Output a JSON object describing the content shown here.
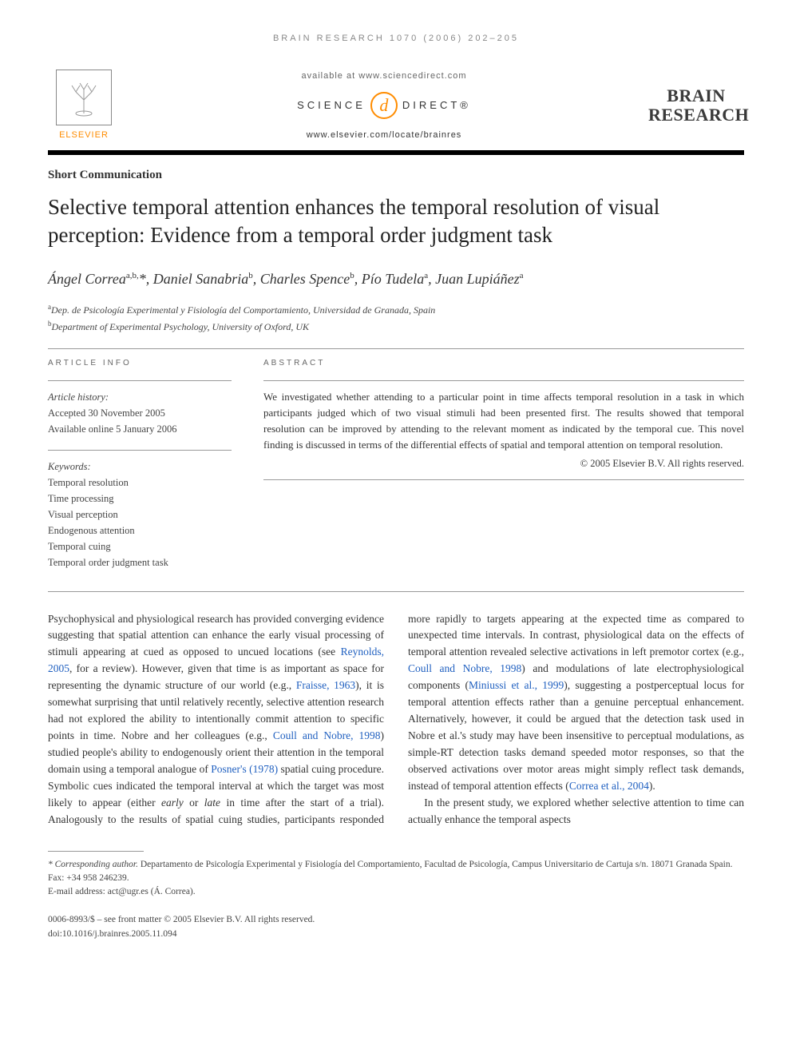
{
  "running_head": "BRAIN RESEARCH 1070 (2006) 202–205",
  "banner": {
    "publisher": "ELSEVIER",
    "available_text": "available at www.sciencedirect.com",
    "sd_left": "SCIENCE",
    "sd_right": "DIRECT®",
    "locate_url": "www.elsevier.com/locate/brainres",
    "journal_line1": "BRAIN",
    "journal_line2": "RESEARCH"
  },
  "article_type": "Short Communication",
  "title": "Selective temporal attention enhances the temporal resolution of visual perception: Evidence from a temporal order judgment task",
  "authors_html": "Ángel Correa<sup>a,b,</sup>*, Daniel Sanabria<sup>b</sup>, Charles Spence<sup>b</sup>, Pío Tudela<sup>a</sup>, Juan Lupiáñez<sup>a</sup>",
  "affiliations": [
    {
      "sup": "a",
      "text": "Dep. de Psicología Experimental y Fisiología del Comportamiento, Universidad de Granada, Spain"
    },
    {
      "sup": "b",
      "text": "Department of Experimental Psychology, University of Oxford, UK"
    }
  ],
  "info": {
    "head": "ARTICLE INFO",
    "history_label": "Article history:",
    "accepted": "Accepted 30 November 2005",
    "online": "Available online 5 January 2006",
    "keywords_label": "Keywords:",
    "keywords": [
      "Temporal resolution",
      "Time processing",
      "Visual perception",
      "Endogenous attention",
      "Temporal cuing",
      "Temporal order judgment task"
    ]
  },
  "abstract": {
    "head": "ABSTRACT",
    "text": "We investigated whether attending to a particular point in time affects temporal resolution in a task in which participants judged which of two visual stimuli had been presented first. The results showed that temporal resolution can be improved by attending to the relevant moment as indicated by the temporal cue. This novel finding is discussed in terms of the differential effects of spatial and temporal attention on temporal resolution.",
    "copyright": "© 2005 Elsevier B.V. All rights reserved."
  },
  "body": {
    "p1_a": "Psychophysical and physiological research has provided converging evidence suggesting that spatial attention can enhance the early visual processing of stimuli appearing at cued as opposed to uncued locations (see ",
    "p1_ref1": "Reynolds, 2005",
    "p1_b": ", for a review). However, given that time is as important as space for representing the dynamic structure of our world (e.g., ",
    "p1_ref2": "Fraisse, 1963",
    "p1_c": "), it is somewhat surprising that until relatively recently, selective attention research had not explored the ability to intentionally commit attention to specific points in time. Nobre and her colleagues (e.g., ",
    "p1_ref3": "Coull and Nobre, 1998",
    "p1_d": ") studied people's ability to endogenously orient their attention in the temporal domain using a temporal analogue of ",
    "p1_ref4": "Posner's (1978)",
    "p1_e": " spatial cuing procedure. Symbolic cues indicated the temporal interval at which the target was most likely to appear (either ",
    "p1_em1": "early",
    "p1_f": " or ",
    "p1_em2": "late",
    "p1_g": " in time after the start of a trial). Analogously to the results of spatial cuing studies, participants responded more rapidly to targets appearing at the expected time as compared to unexpected time intervals. In contrast, physiological data on the effects of temporal attention revealed selective activations in left premotor cortex (e.g., ",
    "p1_ref5": "Coull and Nobre, 1998",
    "p1_h": ") and modulations of late electrophysiological components (",
    "p1_ref6": "Miniussi et al., 1999",
    "p1_i": "), suggesting a postperceptual locus for temporal attention effects rather than a genuine perceptual enhancement. Alternatively, however, it could be argued that the detection task used in Nobre et al.'s study may have been insensitive to perceptual modulations, as simple-RT detection tasks demand speeded motor responses, so that the observed activations over motor areas might simply reflect task demands, instead of temporal attention effects (",
    "p1_ref7": "Correa et al., 2004",
    "p1_j": ").",
    "p2": "In the present study, we explored whether selective attention to time can actually enhance the temporal aspects"
  },
  "footnote": {
    "corr_label": "* Corresponding author.",
    "corr_text": " Departamento de Psicología Experimental y Fisiología del Comportamiento, Facultad de Psicología, Campus Universitario de Cartuja s/n. 18071 Granada Spain. Fax: +34 958 246239.",
    "email_label": "E-mail address:",
    "email": " act@ugr.es (Á. Correa)."
  },
  "footer": {
    "line1": "0006-8993/$ – see front matter © 2005 Elsevier B.V. All rights reserved.",
    "line2": "doi:10.1016/j.brainres.2005.11.094"
  }
}
